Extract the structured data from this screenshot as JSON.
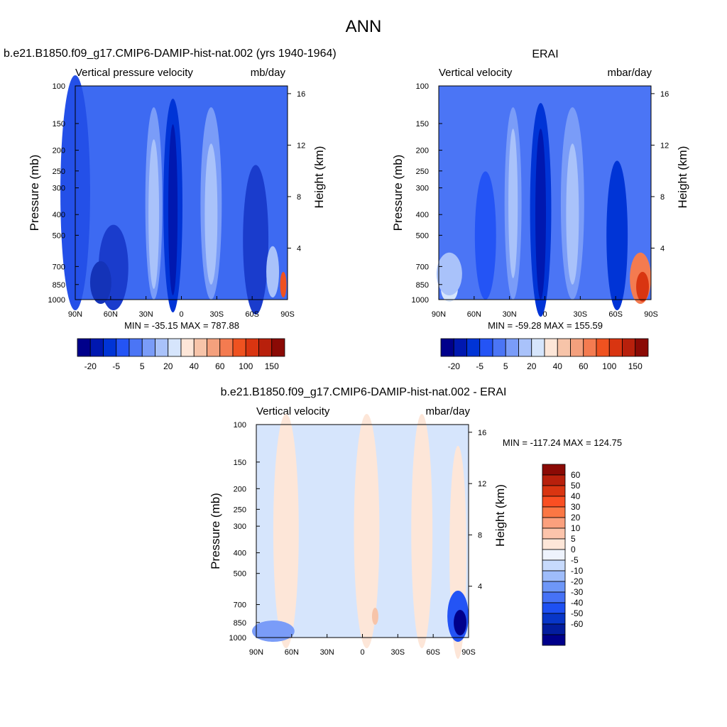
{
  "page": {
    "main_title": "ANN"
  },
  "chart_data": [
    {
      "type": "heatmap",
      "title": "b.e21.B1850.f09_g17.CMIP6-DAMIP-hist-nat.002 (yrs 1940-1964)",
      "subtitle_left": "Vertical pressure velocity",
      "subtitle_right": "mb/day",
      "ylabel": "Pressure (mb)",
      "ylabel_right": "Height (km)",
      "x_ticks": [
        "90N",
        "60N",
        "30N",
        "0",
        "30S",
        "60S",
        "90S"
      ],
      "y_ticks": [
        100,
        150,
        200,
        250,
        300,
        400,
        500,
        700,
        850,
        1000
      ],
      "y_ticks_right": [
        4,
        8,
        12,
        16
      ],
      "y_scale": "log",
      "stats": "MIN = -35.15  MAX = 787.88",
      "colorbar": {
        "orientation": "horizontal",
        "labels": [
          "-20",
          "-5",
          "5",
          "20",
          "40",
          "60",
          "100",
          "150"
        ],
        "colors": [
          "#00008b",
          "#0018b0",
          "#0034d6",
          "#2454f5",
          "#4b75f5",
          "#7a9cf8",
          "#a9c2fa",
          "#d6e5fc",
          "#fde6d8",
          "#f7c4a9",
          "#f4a07d",
          "#f47b50",
          "#ef5220",
          "#d93511",
          "#b8200c",
          "#8b0a05"
        ]
      }
    },
    {
      "type": "heatmap",
      "title": "ERAI",
      "subtitle_left": "Vertical velocity",
      "subtitle_right": "mbar/day",
      "ylabel": "Pressure (mb)",
      "ylabel_right": "Height (km)",
      "x_ticks": [
        "90N",
        "60N",
        "30N",
        "0",
        "30S",
        "60S",
        "90S"
      ],
      "y_ticks": [
        100,
        150,
        200,
        250,
        300,
        400,
        500,
        700,
        850,
        1000
      ],
      "y_ticks_right": [
        4,
        8,
        12,
        16
      ],
      "y_scale": "log",
      "stats": "MIN = -59.28  MAX = 155.59",
      "colorbar": {
        "orientation": "horizontal",
        "labels": [
          "-20",
          "-5",
          "5",
          "20",
          "40",
          "60",
          "100",
          "150"
        ],
        "colors": [
          "#00008b",
          "#0018b0",
          "#0034d6",
          "#2454f5",
          "#4b75f5",
          "#7a9cf8",
          "#a9c2fa",
          "#d6e5fc",
          "#fde6d8",
          "#f7c4a9",
          "#f4a07d",
          "#f47b50",
          "#ef5220",
          "#d93511",
          "#b8200c",
          "#8b0a05"
        ]
      }
    },
    {
      "type": "heatmap",
      "title": "b.e21.B1850.f09_g17.CMIP6-DAMIP-hist-nat.002 - ERAI",
      "subtitle_left": "Vertical velocity",
      "subtitle_right": "mbar/day",
      "ylabel": "Pressure (mb)",
      "ylabel_right": "Height (km)",
      "x_ticks": [
        "90N",
        "60N",
        "30N",
        "0",
        "30S",
        "60S",
        "90S"
      ],
      "y_ticks": [
        100,
        150,
        200,
        250,
        300,
        400,
        500,
        700,
        850,
        1000
      ],
      "y_ticks_right": [
        4,
        8,
        12,
        16
      ],
      "y_scale": "log",
      "stats": "MIN = -117.24  MAX = 124.75",
      "colorbar": {
        "orientation": "vertical",
        "labels": [
          "60",
          "50",
          "40",
          "30",
          "20",
          "10",
          "5",
          "0",
          "-5",
          "-10",
          "-20",
          "-30",
          "-40",
          "-50",
          "-60"
        ],
        "colors": [
          "#8b0a05",
          "#b8200c",
          "#d93511",
          "#fa4f22",
          "#fb7744",
          "#fba07d",
          "#fcc4ab",
          "#fde6d8",
          "#eef3fd",
          "#c7dafc",
          "#9ebcfa",
          "#6e97f8",
          "#4672f6",
          "#1e50f2",
          "#0836c8",
          "#031d9e",
          "#00008b"
        ]
      }
    }
  ]
}
